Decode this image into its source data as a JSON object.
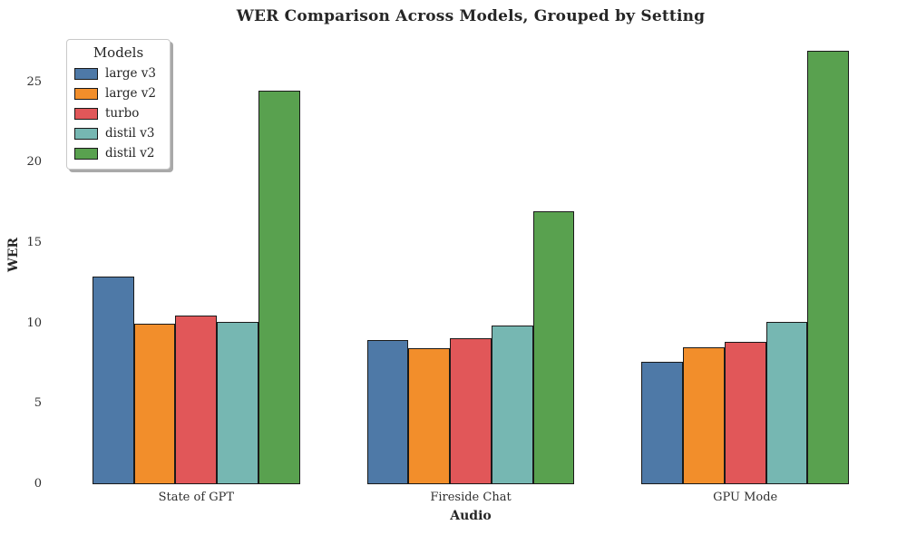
{
  "chart_data": {
    "type": "bar",
    "title": "WER Comparison Across Models, Grouped by Setting",
    "xlabel": "Audio",
    "ylabel": "WER",
    "categories": [
      "State of GPT",
      "Fireside Chat",
      "GPU Mode"
    ],
    "series": [
      {
        "name": "large v3",
        "color": "#4E79A7",
        "values": [
          12.9,
          8.95,
          7.6
        ]
      },
      {
        "name": "large v2",
        "color": "#F28E2B",
        "values": [
          10.0,
          8.45,
          8.5
        ]
      },
      {
        "name": "turbo",
        "color": "#E15759",
        "values": [
          10.5,
          9.1,
          8.85
        ]
      },
      {
        "name": "distil v3",
        "color": "#76B7B2",
        "values": [
          10.1,
          9.85,
          10.1
        ]
      },
      {
        "name": "distil v2",
        "color": "#59A14F",
        "values": [
          24.45,
          17.0,
          26.95
        ]
      }
    ],
    "ylim": [
      0,
      28.25
    ],
    "yticks": [
      0,
      5,
      10,
      15,
      20,
      25
    ],
    "grid": false,
    "legend_title": "Models",
    "legend_position": "upper left",
    "bar_edge_color": "#1a1a1a",
    "text_color": "#262626",
    "background_color": "#ffffff"
  }
}
